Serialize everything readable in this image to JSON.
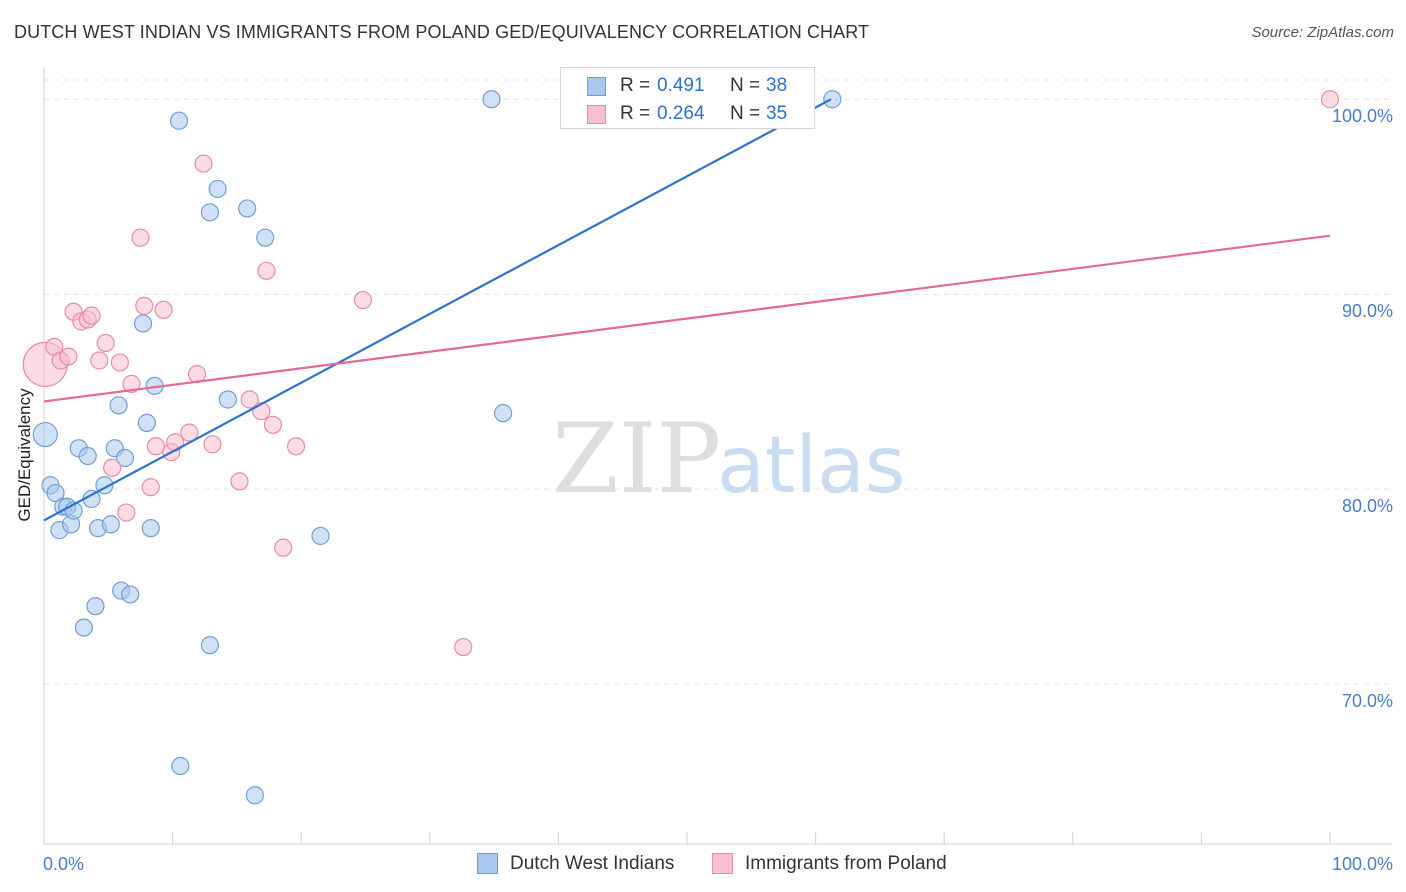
{
  "title": "DUTCH WEST INDIAN VS IMMIGRANTS FROM POLAND GED/EQUIVALENCY CORRELATION CHART",
  "source": "Source: ZipAtlas.com",
  "watermark": {
    "zip": "ZIP",
    "atlas": "atlas"
  },
  "stats_legend": [
    {
      "r_label": "R =",
      "r_value": "0.491",
      "n_label": "N =",
      "n_value": "38",
      "color": "#a9c8ef",
      "border": "#6f9fd8"
    },
    {
      "r_label": "R =",
      "r_value": "0.264",
      "n_label": "N =",
      "n_value": "35",
      "color": "#f7bfd0",
      "border": "#e98ba8"
    }
  ],
  "chart_data": {
    "type": "scatter",
    "title": "DUTCH WEST INDIAN VS IMMIGRANTS FROM POLAND GED/EQUIVALENCY CORRELATION CHART",
    "xlabel": "",
    "ylabel": "GED/Equivalency",
    "xlim": [
      0,
      100
    ],
    "ylim": [
      61.8,
      101.5
    ],
    "x_tick_labels": [
      "0.0%",
      "100.0%"
    ],
    "y_ticks": [
      70,
      80,
      90,
      100
    ],
    "y_tick_labels": [
      "70.0%",
      "80.0%",
      "90.0%",
      "100.0%"
    ],
    "grid": true,
    "series": [
      {
        "name": "Dutch West Indians",
        "color": "#a9c8ef",
        "stroke": "#6f9fd8",
        "line_color": "#2b74d0",
        "trend": {
          "x0": 0.0,
          "y0": 78.4,
          "x1": 61.2,
          "y1": 100.0
        },
        "points": [
          [
            0.1,
            82.8
          ],
          [
            0.5,
            80.2
          ],
          [
            0.9,
            79.8
          ],
          [
            1.2,
            77.9
          ],
          [
            1.5,
            79.1
          ],
          [
            1.8,
            79.1
          ],
          [
            2.1,
            78.2
          ],
          [
            2.3,
            78.9
          ],
          [
            2.7,
            82.1
          ],
          [
            3.1,
            72.9
          ],
          [
            3.4,
            81.7
          ],
          [
            3.7,
            79.5
          ],
          [
            4.0,
            74.0
          ],
          [
            4.2,
            78.0
          ],
          [
            4.7,
            80.2
          ],
          [
            5.2,
            78.2
          ],
          [
            5.5,
            82.1
          ],
          [
            5.8,
            84.3
          ],
          [
            6.0,
            74.8
          ],
          [
            6.3,
            81.6
          ],
          [
            6.7,
            74.6
          ],
          [
            7.7,
            88.5
          ],
          [
            8.0,
            83.4
          ],
          [
            8.3,
            78.0
          ],
          [
            8.6,
            85.3
          ],
          [
            10.5,
            98.9
          ],
          [
            10.6,
            65.8
          ],
          [
            12.9,
            94.2
          ],
          [
            12.9,
            72.0
          ],
          [
            13.5,
            95.4
          ],
          [
            14.3,
            84.6
          ],
          [
            15.8,
            94.4
          ],
          [
            16.4,
            64.3
          ],
          [
            17.2,
            92.9
          ],
          [
            21.5,
            77.6
          ],
          [
            34.8,
            100.0
          ],
          [
            35.7,
            83.9
          ],
          [
            61.3,
            100.0
          ]
        ]
      },
      {
        "name": "Immigrants from Poland",
        "color": "#f7bfd0",
        "stroke": "#e98ba8",
        "line_color": "#e56a93",
        "trend": {
          "x0": 0.0,
          "y0": 84.5,
          "x1": 100.0,
          "y1": 93.0
        },
        "points": [
          [
            0.1,
            86.4
          ],
          [
            0.8,
            87.3
          ],
          [
            1.3,
            86.6
          ],
          [
            1.9,
            86.8
          ],
          [
            2.3,
            89.1
          ],
          [
            2.9,
            88.6
          ],
          [
            3.4,
            88.7
          ],
          [
            3.7,
            88.9
          ],
          [
            4.3,
            86.6
          ],
          [
            4.8,
            87.5
          ],
          [
            5.3,
            81.1
          ],
          [
            5.9,
            86.5
          ],
          [
            6.4,
            78.8
          ],
          [
            6.8,
            85.4
          ],
          [
            7.5,
            92.9
          ],
          [
            7.8,
            89.4
          ],
          [
            8.3,
            80.1
          ],
          [
            8.7,
            82.2
          ],
          [
            9.3,
            89.2
          ],
          [
            9.9,
            81.9
          ],
          [
            10.2,
            82.4
          ],
          [
            11.3,
            82.9
          ],
          [
            11.9,
            85.9
          ],
          [
            12.4,
            96.7
          ],
          [
            13.1,
            82.3
          ],
          [
            15.2,
            80.4
          ],
          [
            16.0,
            84.6
          ],
          [
            16.9,
            84.0
          ],
          [
            17.3,
            91.2
          ],
          [
            17.8,
            83.3
          ],
          [
            18.6,
            77.0
          ],
          [
            19.6,
            82.2
          ],
          [
            24.8,
            89.7
          ],
          [
            32.6,
            71.9
          ],
          [
            100.0,
            100.0
          ]
        ]
      }
    ]
  },
  "bottom_legend": [
    {
      "label": "Dutch West Indians",
      "color": "#a9c8ef",
      "border": "#6f9fd8"
    },
    {
      "label": "Immigrants from Poland",
      "color": "#f7bfd0",
      "border": "#e98ba8"
    }
  ]
}
